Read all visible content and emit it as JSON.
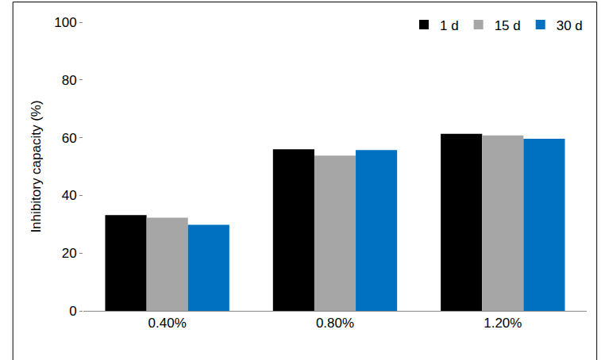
{
  "chart_data": {
    "type": "bar",
    "categories": [
      "0.40%",
      "0.80%",
      "1.20%"
    ],
    "y_label": "Inhibitory capacity (%)",
    "series": [
      {
        "name": "1 d",
        "color": "#000000",
        "values": [
          33.2,
          56.0,
          61.3
        ]
      },
      {
        "name": "15 d",
        "color": "#a6a6a6",
        "values": [
          32.3,
          53.8,
          60.8
        ]
      },
      {
        "name": "30 d",
        "color": "#0070c0",
        "values": [
          29.8,
          55.7,
          59.6
        ]
      }
    ],
    "ylim": [
      0,
      100
    ],
    "yticks": [
      0,
      20,
      40,
      60,
      80,
      100
    ],
    "grid": false,
    "legend": "top-right"
  }
}
